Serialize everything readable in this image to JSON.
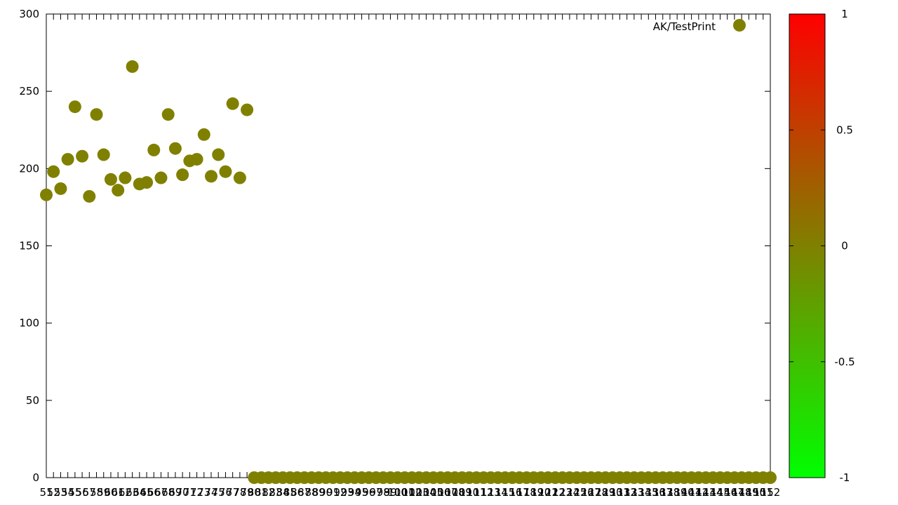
{
  "chart_data": {
    "type": "scatter",
    "title": "",
    "xlabel": "",
    "ylabel": "",
    "legend_position": "top-right",
    "grid": false,
    "ylim": [
      0,
      300
    ],
    "y_ticks": [
      0,
      50,
      100,
      150,
      200,
      250,
      300
    ],
    "x_start": 51,
    "x_end": 152,
    "x_tick_labels": [
      "51",
      "52",
      "53",
      "54",
      "55",
      "56",
      "57",
      "58",
      "59",
      "60",
      "61",
      "62",
      "63",
      "64",
      "65",
      "66",
      "67",
      "68",
      "69",
      "70",
      "71",
      "72",
      "73",
      "74",
      "75",
      "76",
      "77",
      "78",
      "79",
      "80",
      "81",
      "82",
      "83",
      "84",
      "85",
      "86",
      "87",
      "88",
      "89",
      "90",
      "91",
      "92",
      "93",
      "94",
      "95",
      "96",
      "97",
      "98",
      "99",
      "100",
      "101",
      "102",
      "103",
      "104",
      "105",
      "106",
      "107",
      "108",
      "109",
      "110",
      "111",
      "112",
      "113",
      "114",
      "115",
      "116",
      "117",
      "118",
      "119",
      "120",
      "121",
      "122",
      "123",
      "124",
      "125",
      "126",
      "127",
      "128",
      "129",
      "130",
      "131",
      "132",
      "133",
      "134",
      "135",
      "136",
      "137",
      "138",
      "139",
      "140",
      "141",
      "142",
      "143",
      "144",
      "145",
      "146",
      "147",
      "148",
      "149",
      "150",
      "151",
      "152"
    ],
    "series": [
      {
        "name": "AK/TestPrint",
        "color": "#808000",
        "values": [
          183,
          198,
          187,
          206,
          240,
          208,
          182,
          235,
          209,
          193,
          186,
          194,
          266,
          190,
          191,
          212,
          194,
          235,
          213,
          196,
          205,
          206,
          222,
          195,
          209,
          198,
          242,
          194,
          238,
          0,
          0,
          0,
          0,
          0,
          0,
          0,
          0,
          0,
          0,
          0,
          0,
          0,
          0,
          0,
          0,
          0,
          0,
          0,
          0,
          0,
          0,
          0,
          0,
          0,
          0,
          0,
          0,
          0,
          0,
          0,
          0,
          0,
          0,
          0,
          0,
          0,
          0,
          0,
          0,
          0,
          0,
          0,
          0,
          0,
          0,
          0,
          0,
          0,
          0,
          0,
          0,
          0,
          0,
          0,
          0,
          0,
          0,
          0,
          0,
          0,
          0,
          0,
          0,
          0,
          0,
          0,
          0,
          0,
          0,
          0,
          0,
          0
        ]
      }
    ],
    "colorbar": {
      "min": -1,
      "max": 1,
      "ticks": [
        "1",
        "0.5",
        "0",
        "-0.5",
        "-1"
      ],
      "color_low": "#00ff00",
      "color_mid": "#808000",
      "color_high": "#ff0000"
    }
  }
}
